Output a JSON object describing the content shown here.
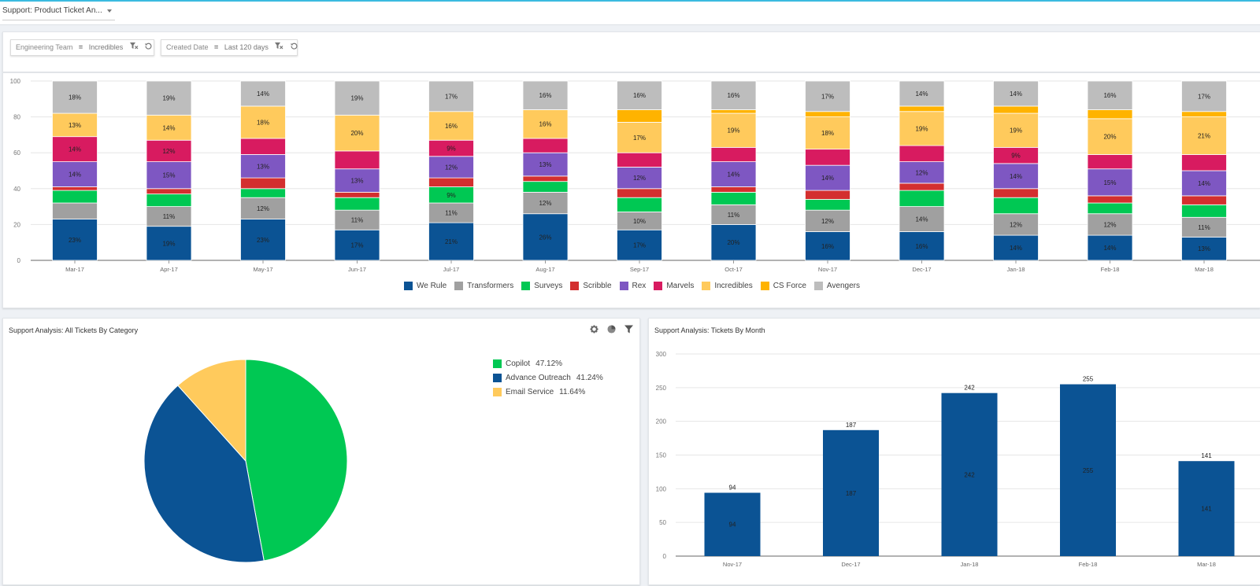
{
  "header": {
    "dashboard_name": "Support: Product Ticket An...",
    "accent_color": "#3bbbe0"
  },
  "filters": [
    {
      "field": "Engineering Team",
      "operator": "=",
      "value": "Incredibles",
      "clear_icon": "filter-clear-icon",
      "reset_icon": "reset-icon"
    },
    {
      "field": "Created Date",
      "operator": "=",
      "value": "Last 120 days",
      "clear_icon": "filter-clear-icon",
      "reset_icon": "reset-icon"
    }
  ],
  "pie_panel": {
    "title": "Support Analysis: All Tickets By Category",
    "tools": [
      "gear-icon",
      "pie-chart-icon",
      "filter-icon"
    ]
  },
  "bar_panel": {
    "title": "Support Analysis: Tickets By Month"
  },
  "chart_data": [
    {
      "type": "bar",
      "stacked": true,
      "title": "",
      "xlabel": "",
      "ylabel": "",
      "ylim": [
        0,
        100
      ],
      "yticks": [
        0,
        20,
        40,
        60,
        80,
        100
      ],
      "grid": true,
      "legend_position": "bottom",
      "categories": [
        "Mar-17",
        "Apr-17",
        "May-17",
        "Jun-17",
        "Jul-17",
        "Aug-17",
        "Sep-17",
        "Oct-17",
        "Nov-17",
        "Dec-17",
        "Jan-18",
        "Feb-18",
        "Mar-18"
      ],
      "series": [
        {
          "name": "We Rule",
          "color": "#0b5394",
          "values": [
            23,
            19,
            23,
            17,
            21,
            26,
            17,
            20,
            16,
            16,
            14,
            14,
            13
          ],
          "labeled": [
            true,
            true,
            true,
            true,
            true,
            true,
            true,
            true,
            true,
            true,
            true,
            true,
            true
          ]
        },
        {
          "name": "Transformers",
          "color": "#a0a0a0",
          "values": [
            9,
            11,
            12,
            11,
            11,
            12,
            10,
            11,
            12,
            14,
            12,
            12,
            11
          ],
          "labeled": [
            false,
            true,
            true,
            true,
            true,
            true,
            true,
            true,
            true,
            true,
            true,
            true,
            true
          ]
        },
        {
          "name": "Surveys",
          "color": "#00c853",
          "values": [
            7,
            7,
            5,
            7,
            9,
            6,
            8,
            7,
            6,
            9,
            9,
            6,
            7
          ],
          "labeled": [
            false,
            false,
            false,
            false,
            true,
            false,
            false,
            false,
            false,
            false,
            false,
            false,
            false
          ]
        },
        {
          "name": "Scribble",
          "color": "#d32f2f",
          "values": [
            2,
            3,
            6,
            3,
            5,
            3,
            5,
            3,
            5,
            4,
            5,
            4,
            5
          ],
          "labeled": [
            false,
            false,
            false,
            false,
            false,
            false,
            false,
            false,
            false,
            false,
            false,
            false,
            false
          ]
        },
        {
          "name": "Rex",
          "color": "#7e57c2",
          "values": [
            14,
            15,
            13,
            13,
            12,
            13,
            12,
            14,
            14,
            12,
            14,
            15,
            14
          ],
          "labeled": [
            true,
            true,
            true,
            true,
            true,
            true,
            true,
            true,
            true,
            true,
            true,
            true,
            true
          ]
        },
        {
          "name": "Marvels",
          "color": "#d81b60",
          "values": [
            14,
            12,
            9,
            10,
            9,
            8,
            8,
            8,
            9,
            9,
            9,
            8,
            9
          ],
          "labeled": [
            true,
            true,
            false,
            false,
            true,
            false,
            false,
            false,
            false,
            false,
            true,
            false,
            false
          ]
        },
        {
          "name": "Incredibles",
          "color": "#ffca5c",
          "values": [
            13,
            14,
            18,
            20,
            16,
            16,
            17,
            19,
            18,
            19,
            19,
            20,
            21
          ],
          "labeled": [
            true,
            true,
            true,
            true,
            true,
            true,
            true,
            true,
            true,
            true,
            true,
            true,
            true
          ]
        },
        {
          "name": "CS Force",
          "color": "#ffb300",
          "values": [
            0,
            0,
            0,
            0,
            0,
            0,
            7,
            2,
            3,
            3,
            4,
            5,
            3
          ],
          "labeled": [
            false,
            false,
            false,
            false,
            false,
            false,
            false,
            false,
            false,
            false,
            false,
            false,
            false
          ]
        },
        {
          "name": "Avengers",
          "color": "#bdbdbd",
          "values": [
            18,
            19,
            14,
            19,
            17,
            16,
            16,
            16,
            17,
            14,
            14,
            16,
            17
          ],
          "labeled": [
            true,
            true,
            true,
            true,
            true,
            true,
            true,
            true,
            true,
            true,
            true,
            true,
            true
          ]
        }
      ],
      "label_suffix": "%"
    },
    {
      "type": "pie",
      "title": "Support Analysis: All Tickets By Category",
      "legend_position": "right",
      "slices": [
        {
          "label": "Copilot",
          "value": 47.12,
          "display": "47.12%",
          "color": "#00c853"
        },
        {
          "label": "Advance Outreach",
          "value": 41.24,
          "display": "41.24%",
          "color": "#0b5394"
        },
        {
          "label": "Email Service",
          "value": 11.64,
          "display": "11.64%",
          "color": "#ffca5c"
        }
      ]
    },
    {
      "type": "bar",
      "title": "Support Analysis: Tickets By Month",
      "xlabel": "",
      "ylabel": "",
      "ylim": [
        0,
        300
      ],
      "yticks": [
        0,
        50,
        100,
        150,
        200,
        250,
        300
      ],
      "grid": true,
      "color": "#0b5394",
      "categories": [
        "Nov-17",
        "Dec-17",
        "Jan-18",
        "Feb-18",
        "Mar-18"
      ],
      "values": [
        94,
        187,
        242,
        255,
        141
      ]
    }
  ]
}
